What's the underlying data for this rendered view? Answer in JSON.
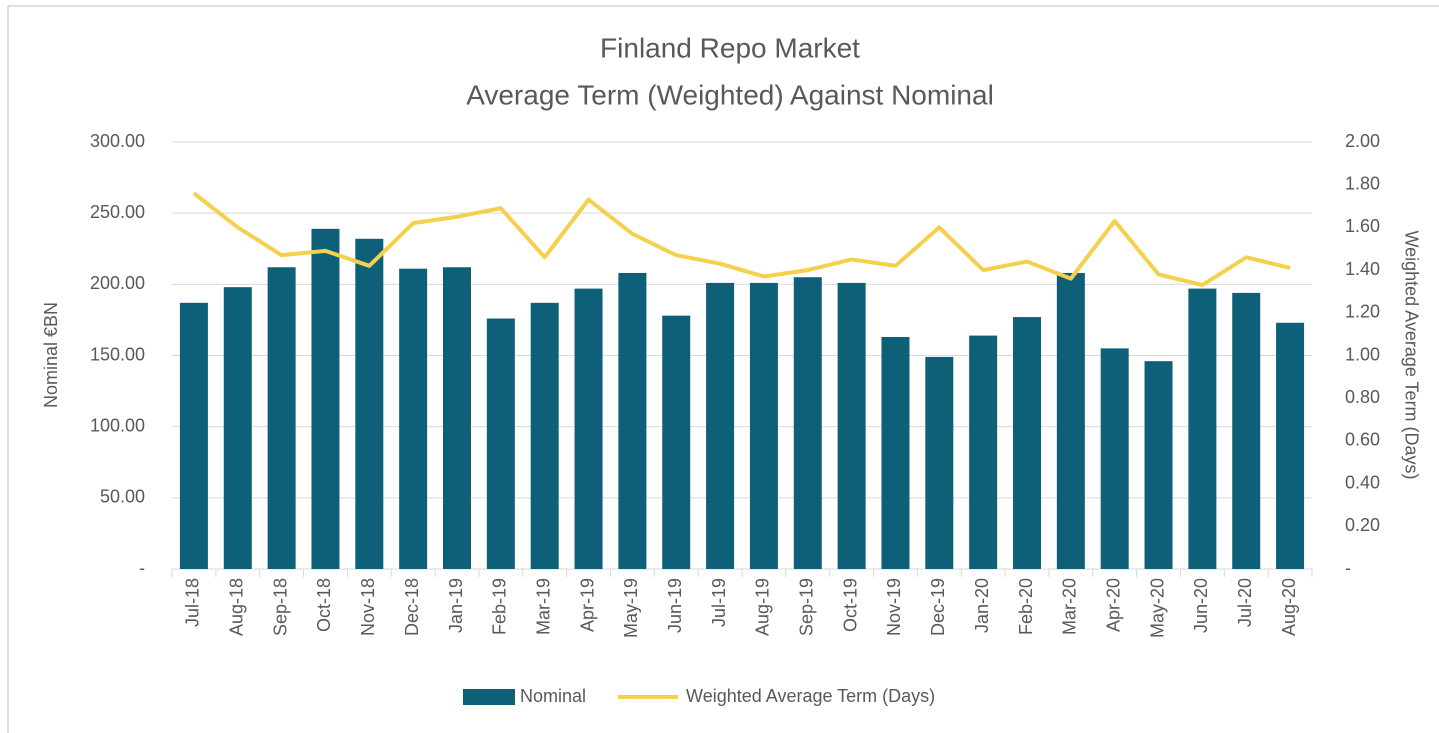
{
  "chart_data": {
    "type": "bar_line",
    "title": "Finland Repo Market",
    "subtitle": "Average Term (Weighted) Against Nominal",
    "y_label": "Nominal €BN",
    "y2_label": "Weighted Average Term (Days)",
    "categories": [
      "Jul-18",
      "Aug-18",
      "Sep-18",
      "Oct-18",
      "Nov-18",
      "Dec-18",
      "Jan-19",
      "Feb-19",
      "Mar-19",
      "Apr-19",
      "May-19",
      "Jun-19",
      "Jul-19",
      "Aug-19",
      "Sep-19",
      "Oct-19",
      "Nov-19",
      "Dec-19",
      "Jan-20",
      "Feb-20",
      "Mar-20",
      "Apr-20",
      "May-20",
      "Jun-20",
      "Jul-20",
      "Aug-20"
    ],
    "series": [
      {
        "name": "Nominal",
        "type": "bar",
        "color": "#0e6078",
        "values": [
          187,
          198,
          212,
          239,
          232,
          211,
          212,
          176,
          187,
          197,
          208,
          178,
          201,
          201,
          205,
          201,
          163,
          149,
          164,
          177,
          208,
          155,
          146,
          197,
          194,
          173
        ]
      },
      {
        "name": "Weighted Average Term (Days)",
        "type": "line",
        "axis": "y2",
        "color": "#f5d04c",
        "values": [
          1.76,
          1.6,
          1.47,
          1.49,
          1.42,
          1.62,
          1.65,
          1.69,
          1.46,
          1.73,
          1.57,
          1.47,
          1.43,
          1.37,
          1.4,
          1.45,
          1.42,
          1.6,
          1.4,
          1.44,
          1.36,
          1.63,
          1.38,
          1.33,
          1.46,
          1.41
        ]
      }
    ],
    "ylim": [
      0,
      300
    ],
    "yticks": [
      {
        "value": 0,
        "label": "-"
      },
      {
        "value": 50,
        "label": "50.00"
      },
      {
        "value": 100,
        "label": "100.00"
      },
      {
        "value": 150,
        "label": "150.00"
      },
      {
        "value": 200,
        "label": "200.00"
      },
      {
        "value": 250,
        "label": "250.00"
      },
      {
        "value": 300,
        "label": "300.00"
      }
    ],
    "y2lim": [
      0,
      2
    ],
    "y2ticks": [
      {
        "value": 0,
        "label": "-"
      },
      {
        "value": 0.2,
        "label": "0.20"
      },
      {
        "value": 0.4,
        "label": "0.40"
      },
      {
        "value": 0.6,
        "label": "0.60"
      },
      {
        "value": 0.8,
        "label": "0.80"
      },
      {
        "value": 1,
        "label": "1.00"
      },
      {
        "value": 1.2,
        "label": "1.20"
      },
      {
        "value": 1.4,
        "label": "1.40"
      },
      {
        "value": 1.6,
        "label": "1.60"
      },
      {
        "value": 1.8,
        "label": "1.80"
      },
      {
        "value": 2,
        "label": "2.00"
      }
    ],
    "grid": true,
    "legend": "bottom"
  }
}
